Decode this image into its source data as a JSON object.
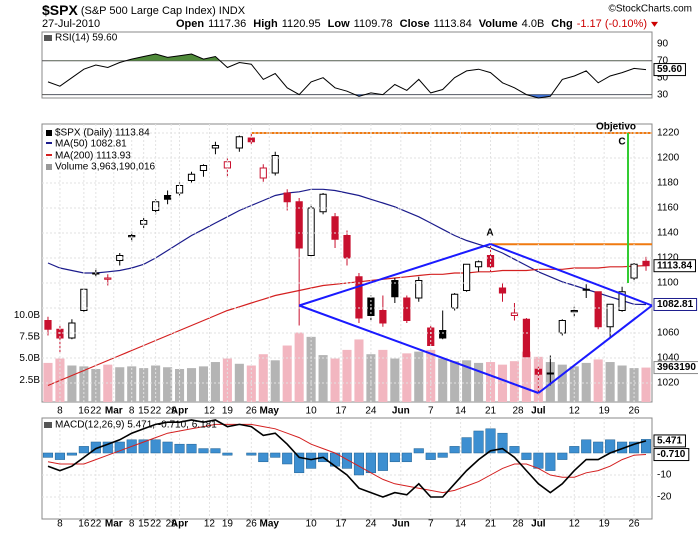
{
  "header": {
    "symbol": "$SPX",
    "name": "(S&P 500 Large Cap Index) INDX",
    "date": "27-Jul-2010",
    "copyright": "©StockCharts.com",
    "quote": [
      {
        "label": "Open",
        "value": "1117.36"
      },
      {
        "label": "High",
        "value": "1120.95"
      },
      {
        "label": "Low",
        "value": "1109.78"
      },
      {
        "label": "Close",
        "value": "1113.84"
      },
      {
        "label": "Volume",
        "value": "4.0B"
      },
      {
        "label": "Chg",
        "value": "-1.17 (-0.10%)",
        "color": "#cc0000"
      }
    ]
  },
  "chart_data": [
    {
      "type": "candlestick",
      "name": "$SPX (Daily) 1113.84",
      "colors": {
        "up": "#000000",
        "down": "#c8102e"
      },
      "volume_colors": {
        "up": "#b4b4b4",
        "down": "#f2b6c0"
      },
      "ohlc": [
        [
          1070,
          1073,
          1058,
          1063
        ],
        [
          1063,
          1066,
          1044,
          1056
        ],
        [
          1056,
          1071,
          1055,
          1068
        ],
        [
          1078,
          1096,
          1077,
          1095
        ],
        [
          1108,
          1112,
          1105,
          1108
        ],
        [
          1103,
          1107,
          1098,
          1104
        ],
        [
          1118,
          1124,
          1114,
          1122
        ],
        [
          1137,
          1141,
          1133,
          1138
        ],
        [
          1147,
          1152,
          1144,
          1150
        ],
        [
          1158,
          1167,
          1155,
          1165
        ],
        [
          1170,
          1174,
          1163,
          1167
        ],
        [
          1172,
          1181,
          1170,
          1178
        ],
        [
          1182,
          1189,
          1180,
          1187
        ],
        [
          1190,
          1195,
          1185,
          1194
        ],
        [
          1208,
          1213,
          1203,
          1210
        ],
        [
          1192,
          1200,
          1185,
          1197
        ],
        [
          1208,
          1218,
          1205,
          1217
        ],
        [
          1216,
          1220,
          1211,
          1213
        ],
        [
          1184,
          1195,
          1181,
          1192
        ],
        [
          1188,
          1205,
          1186,
          1202
        ],
        [
          1172,
          1175,
          1158,
          1165
        ],
        [
          1165,
          1168,
          1066,
          1128
        ],
        [
          1122,
          1163,
          1121,
          1160
        ],
        [
          1157,
          1172,
          1155,
          1171
        ],
        [
          1153,
          1156,
          1128,
          1135
        ],
        [
          1138,
          1142,
          1114,
          1120
        ],
        [
          1105,
          1108,
          1068,
          1072
        ],
        [
          1088,
          1090,
          1070,
          1074
        ],
        [
          1078,
          1090,
          1065,
          1068
        ],
        [
          1102,
          1104,
          1084,
          1089
        ],
        [
          1088,
          1090,
          1068,
          1070
        ],
        [
          1088,
          1105,
          1085,
          1102
        ],
        [
          1064,
          1066,
          1050,
          1050
        ],
        [
          1062,
          1078,
          1055,
          1056
        ],
        [
          1080,
          1092,
          1078,
          1091
        ],
        [
          1094,
          1115,
          1093,
          1115
        ],
        [
          1113,
          1118,
          1109,
          1117
        ],
        [
          1122,
          1131,
          1108,
          1113
        ],
        [
          1096,
          1100,
          1085,
          1092
        ],
        [
          1074,
          1084,
          1070,
          1076
        ],
        [
          1071,
          1072,
          1041,
          1041
        ],
        [
          1031,
          1033,
          1011,
          1027
        ],
        [
          1028,
          1042,
          1018,
          1028
        ],
        [
          1060,
          1071,
          1058,
          1070
        ],
        [
          1077,
          1081,
          1073,
          1078
        ],
        [
          1095,
          1099,
          1088,
          1095
        ],
        [
          1093,
          1093,
          1063,
          1065
        ],
        [
          1065,
          1083,
          1056,
          1083
        ],
        [
          1078,
          1097,
          1077,
          1093
        ],
        [
          1104,
          1116,
          1101,
          1115
        ],
        [
          1117.36,
          1120.95,
          1109.78,
          1113.84
        ]
      ],
      "series": [
        {
          "name": "MA(50) 1082.81",
          "color": "#1c1c8c",
          "values": [
            1116,
            1112,
            1110,
            1108,
            1108,
            1109,
            1110,
            1112,
            1115,
            1120,
            1126,
            1132,
            1138,
            1143,
            1148,
            1153,
            1158,
            1162,
            1166,
            1170,
            1172,
            1173,
            1175,
            1175,
            1174,
            1172,
            1170,
            1167,
            1164,
            1161,
            1157,
            1153,
            1148,
            1143,
            1138,
            1134,
            1131,
            1128,
            1124,
            1119,
            1114,
            1109,
            1105,
            1101,
            1098,
            1095,
            1092,
            1089,
            1086,
            1083,
            1082.81
          ]
        },
        {
          "name": "MA(200) 1113.93",
          "color": "#d42020",
          "values": [
            1018,
            1022,
            1026,
            1030,
            1034,
            1038,
            1042,
            1046,
            1050,
            1054,
            1058,
            1062,
            1066,
            1070,
            1074,
            1078,
            1081,
            1084,
            1087,
            1090,
            1092,
            1094,
            1096,
            1098,
            1099,
            1100,
            1101,
            1102,
            1103,
            1104,
            1105,
            1106,
            1107,
            1107,
            1108,
            1108,
            1109,
            1109,
            1110,
            1110,
            1110,
            1111,
            1111,
            1111,
            1112,
            1112,
            1112,
            1113,
            1113,
            1113.5,
            1113.93
          ]
        },
        {
          "name": "Volume 3,963,190,016",
          "color": "#b4b4b4",
          "axis": "y2",
          "values": [
            4.5,
            5.0,
            4.2,
            4.1,
            3.8,
            4.3,
            4.0,
            4.1,
            3.9,
            4.2,
            4.0,
            3.8,
            3.9,
            4.1,
            4.6,
            5.0,
            4.4,
            4.2,
            5.5,
            4.8,
            6.5,
            8.0,
            7.5,
            5.4,
            5.0,
            6.0,
            7.2,
            5.5,
            6.0,
            5.0,
            5.6,
            5.8,
            6.0,
            5.0,
            4.7,
            4.8,
            4.5,
            4.6,
            4.3,
            4.7,
            5.8,
            5.2,
            4.6,
            4.3,
            4.1,
            4.5,
            4.9,
            4.6,
            4.2,
            3.9,
            3.963190016
          ]
        }
      ],
      "volume_tag": "3963190",
      "levels": [
        1220,
        1131
      ],
      "annotations": [
        "Objetivo",
        "C",
        "A"
      ],
      "xlim": [
        -0.5,
        50.5
      ],
      "ylim": [
        1004.8,
        1227.2
      ],
      "yticks": [
        1020,
        1040,
        1060,
        1080,
        1100,
        1120,
        1140,
        1160,
        1180,
        1200,
        1220
      ],
      "y2lim": [
        0,
        32
      ],
      "y2ticks": [
        {
          "value": 2.5,
          "label": "2.5B"
        },
        {
          "value": 5,
          "label": "5.0B"
        },
        {
          "value": 7.5,
          "label": "7.5B"
        },
        {
          "value": 10,
          "label": "10.0B"
        }
      ],
      "xticks": [
        {
          "value": 1,
          "label": "8"
        },
        {
          "value": 3,
          "label": "16"
        },
        {
          "value": 4,
          "label": "22"
        },
        {
          "value": 5.5,
          "label": "Mar"
        },
        {
          "value": 7,
          "label": "8"
        },
        {
          "value": 8,
          "label": "15"
        },
        {
          "value": 9,
          "label": "22"
        },
        {
          "value": 10.3,
          "label": "29"
        },
        {
          "value": 11,
          "label": "Apr"
        },
        {
          "value": 13.5,
          "label": "12"
        },
        {
          "value": 15,
          "label": "19"
        },
        {
          "value": 17,
          "label": "26"
        },
        {
          "value": 18.5,
          "label": "May"
        },
        {
          "value": 22,
          "label": "10"
        },
        {
          "value": 24.5,
          "label": "17"
        },
        {
          "value": 27,
          "label": "24"
        },
        {
          "value": 29.5,
          "label": "Jun"
        },
        {
          "value": 32,
          "label": "7"
        },
        {
          "value": 34.5,
          "label": "14"
        },
        {
          "value": 37,
          "label": "21"
        },
        {
          "value": 39.3,
          "label": "28"
        },
        {
          "value": 41,
          "label": "Jul"
        },
        {
          "value": 44,
          "label": "12"
        },
        {
          "value": 46.5,
          "label": "19"
        },
        {
          "value": 49,
          "label": "26"
        }
      ],
      "grid": true
    },
    {
      "type": "line",
      "title": "RSI(14) 59.60",
      "color": "#000000",
      "fill_colors": {
        "over": "#4f8a3a",
        "under": "#3d6fd1"
      },
      "values": [
        45,
        40,
        50,
        60,
        65,
        62,
        68,
        72,
        75,
        78,
        74,
        76,
        78,
        72,
        75,
        62,
        68,
        66,
        48,
        55,
        38,
        30,
        45,
        50,
        38,
        34,
        28,
        32,
        30,
        42,
        35,
        48,
        32,
        36,
        50,
        58,
        60,
        56,
        44,
        38,
        30,
        26,
        28,
        48,
        52,
        58,
        44,
        52,
        56,
        61,
        59.6
      ],
      "last_label": "59.60",
      "ylim": [
        26,
        104
      ],
      "yticks": [
        90,
        70,
        50,
        30
      ],
      "bands": [
        70,
        30
      ]
    },
    {
      "type": "macd",
      "title": "MACD(12,26,9) 5.471, -0.710, 6.181",
      "series": [
        {
          "name": "MACD",
          "color": "#000000",
          "values": [
            -6,
            -8,
            -6,
            -2,
            2,
            4,
            6,
            9,
            11,
            13,
            14,
            14,
            15,
            14,
            15,
            12,
            13,
            12,
            8,
            9,
            4,
            -2,
            -3,
            -2,
            -6,
            -10,
            -16,
            -18,
            -20,
            -18,
            -19,
            -14,
            -20,
            -20,
            -14,
            -8,
            -3,
            1,
            2,
            -2,
            -8,
            -14,
            -18,
            -14,
            -8,
            -3,
            -3,
            0,
            2,
            4,
            5.471
          ]
        },
        {
          "name": "Signal",
          "color": "#d42020",
          "values": [
            -4,
            -5,
            -5,
            -5,
            -3,
            -1,
            1,
            3,
            5,
            7,
            9,
            10,
            11,
            12,
            13,
            13,
            13,
            13,
            12,
            11,
            9,
            7,
            4,
            2,
            0,
            -3,
            -6,
            -9,
            -12,
            -14,
            -15,
            -16,
            -17,
            -18,
            -17,
            -15,
            -13,
            -10,
            -7,
            -5,
            -5,
            -7,
            -10,
            -11,
            -11,
            -9,
            -8,
            -6,
            -3,
            -1,
            -0.71
          ]
        },
        {
          "name": "Histogram",
          "color": "#3d8fd1",
          "values": [
            -2,
            -3,
            -1,
            3,
            5,
            5,
            5,
            6,
            6,
            6,
            5,
            4,
            4,
            2,
            2,
            -1,
            0,
            -1,
            -4,
            -2,
            -5,
            -9,
            -7,
            -4,
            -6,
            -7,
            -10,
            -9,
            -8,
            -4,
            -4,
            2,
            -3,
            -2,
            3,
            7,
            10,
            11,
            9,
            3,
            -3,
            -7,
            -8,
            -3,
            3,
            6,
            5,
            6,
            5,
            5,
            6.181
          ]
        }
      ],
      "last_labels": [
        "5.471",
        "-0.710"
      ],
      "ylim": [
        -30,
        15.9
      ],
      "yticks": [
        -10,
        -20
      ],
      "xticks": [
        {
          "value": 1,
          "label": "8"
        },
        {
          "value": 3,
          "label": "16"
        },
        {
          "value": 4,
          "label": "22"
        },
        {
          "value": 5.5,
          "label": "Mar"
        },
        {
          "value": 7,
          "label": "8"
        },
        {
          "value": 8,
          "label": "15"
        },
        {
          "value": 9,
          "label": "22"
        },
        {
          "value": 10.3,
          "label": "29"
        },
        {
          "value": 11,
          "label": "Apr"
        },
        {
          "value": 13.5,
          "label": "12"
        },
        {
          "value": 15,
          "label": "19"
        },
        {
          "value": 17,
          "label": "26"
        },
        {
          "value": 18.5,
          "label": "May"
        },
        {
          "value": 22,
          "label": "10"
        },
        {
          "value": 24.5,
          "label": "17"
        },
        {
          "value": 27,
          "label": "24"
        },
        {
          "value": 29.5,
          "label": "Jun"
        },
        {
          "value": 32,
          "label": "7"
        },
        {
          "value": 34.5,
          "label": "14"
        },
        {
          "value": 37,
          "label": "21"
        },
        {
          "value": 39.3,
          "label": "28"
        },
        {
          "value": 41,
          "label": "Jul"
        },
        {
          "value": 44,
          "label": "12"
        },
        {
          "value": 46.5,
          "label": "19"
        },
        {
          "value": 49,
          "label": "26"
        }
      ]
    }
  ]
}
